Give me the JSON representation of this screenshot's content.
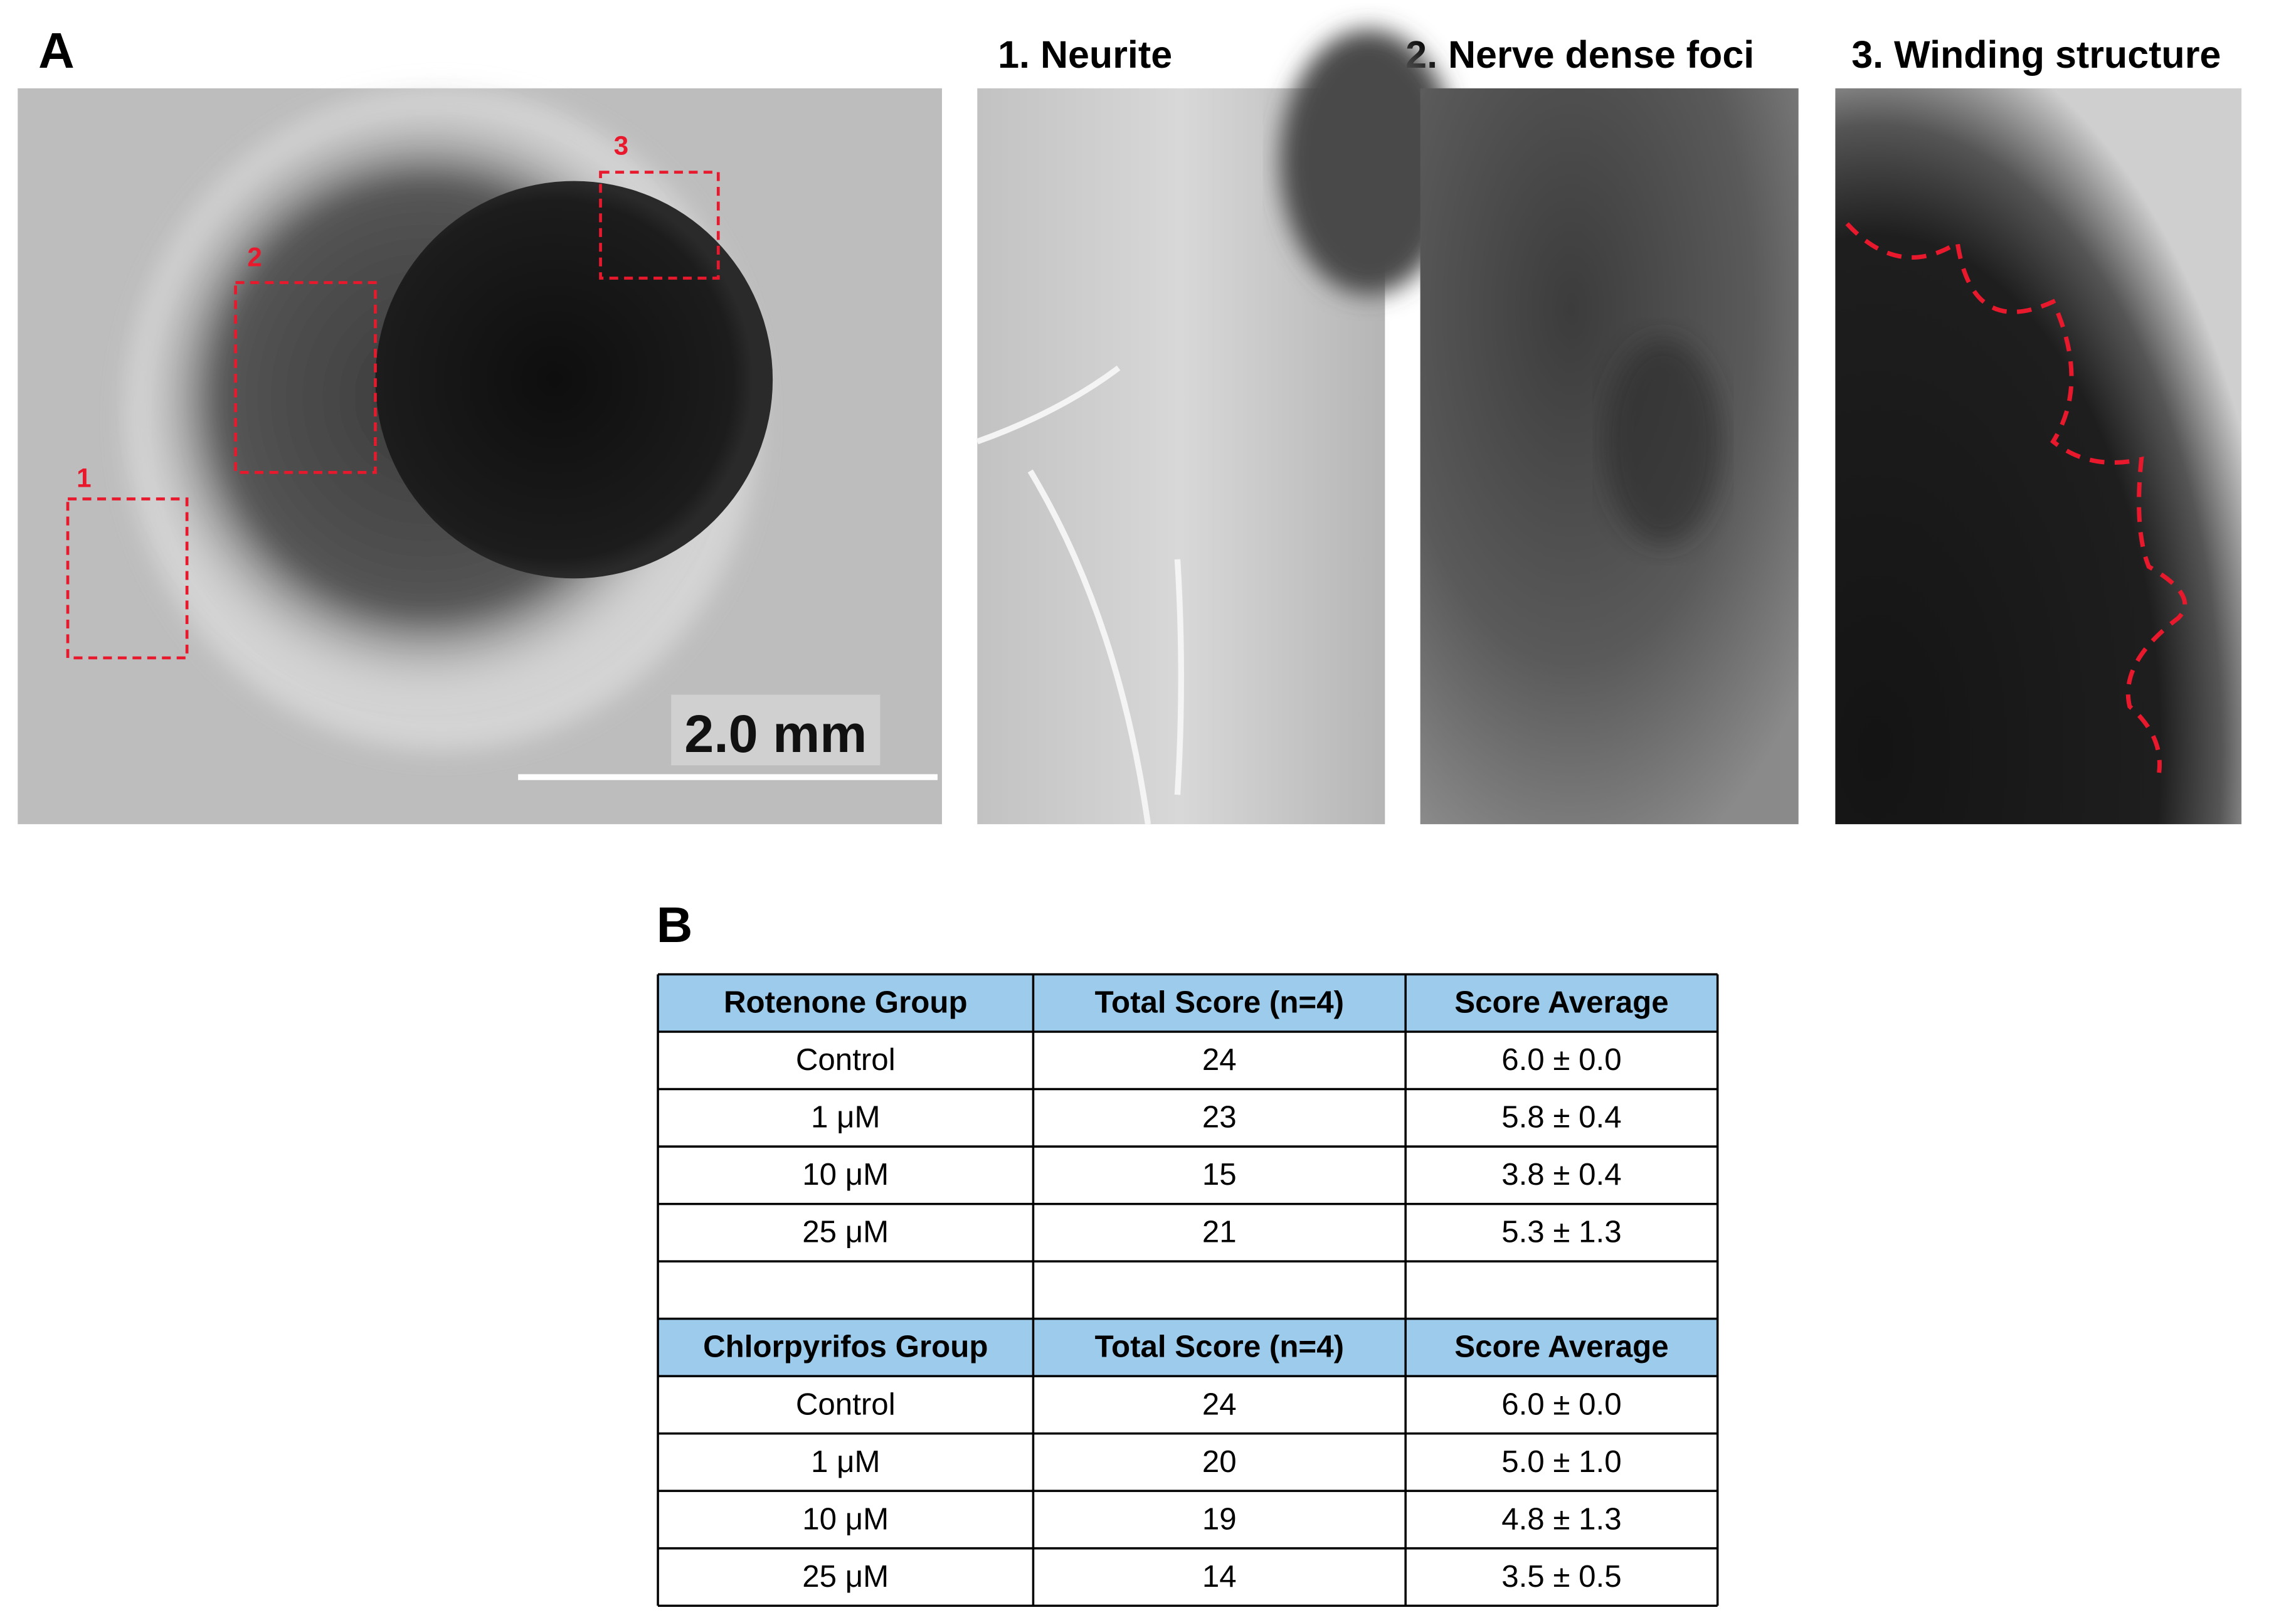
{
  "panel_a": {
    "label": "A",
    "scale_bar": "2.0 mm",
    "box_labels": [
      "1",
      "2",
      "3"
    ],
    "insets": [
      "1. Neurite",
      "2. Nerve dense foci",
      "3. Winding structure"
    ]
  },
  "panel_b": {
    "label": "B",
    "tables": [
      {
        "header": [
          "Rotenone Group",
          "Total Score (n=4)",
          "Score Average"
        ],
        "rows": [
          [
            "Control",
            "24",
            "6.0 ± 0.0"
          ],
          [
            "1 μM",
            "23",
            "5.8 ± 0.4"
          ],
          [
            "10 μM",
            "15",
            "3.8 ± 0.4"
          ],
          [
            "25 μM",
            "21",
            "5.3 ± 1.3"
          ]
        ]
      },
      {
        "header": [
          "Chlorpyrifos Group",
          "Total Score (n=4)",
          "Score Average"
        ],
        "rows": [
          [
            "Control",
            "24",
            "6.0 ± 0.0"
          ],
          [
            "1 μM",
            "20",
            "5.0 ± 1.0"
          ],
          [
            "10 μM",
            "19",
            "4.8 ± 1.3"
          ],
          [
            "25 μM",
            "14",
            "3.5 ± 0.5"
          ]
        ]
      }
    ]
  }
}
